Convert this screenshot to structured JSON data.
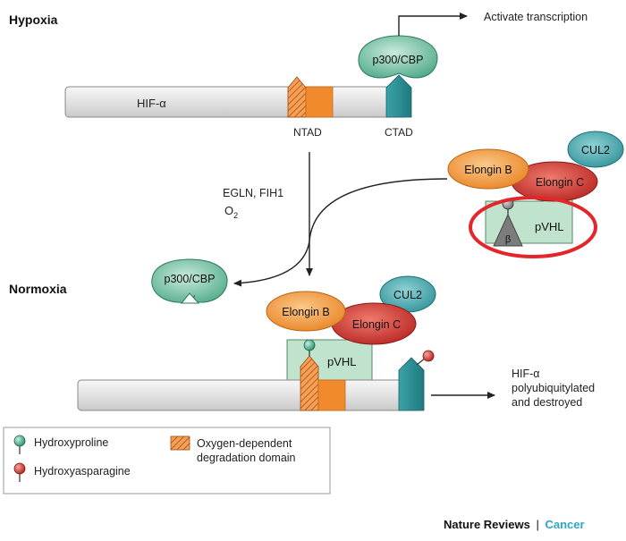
{
  "hypoxia": {
    "section_title": "Hypoxia",
    "protein_label": "HIF-α",
    "coactivator_label": "p300/CBP",
    "ntad_label": "NTAD",
    "ctad_label": "CTAD",
    "outcome_label": "Activate transcription"
  },
  "pathway": {
    "enzymes_label": "EGLN, FIH1",
    "oxygen_label": "O",
    "oxygen_subscript": "2",
    "released_coactivator_label": "p300/CBP"
  },
  "complex_free": {
    "elongin_b": "Elongin B",
    "elongin_c": "Elongin C",
    "cul2": "CUL2",
    "pvhl": "pVHL",
    "beta": "β"
  },
  "normoxia": {
    "section_title": "Normoxia",
    "elongin_b": "Elongin B",
    "elongin_c": "Elongin C",
    "cul2": "CUL2",
    "pvhl": "pVHL",
    "outcome_line1": "HIF-α",
    "outcome_line2": "polyubiquitylated",
    "outcome_line3": "and destroyed"
  },
  "legend": {
    "hydroxyproline": "Hydroxyproline",
    "hydroxyasparagine": "Hydroxyasparagine",
    "odd_line1": "Oxygen-dependent",
    "odd_line2": "degradation domain"
  },
  "credit": {
    "journal": "Nature Reviews",
    "separator": "|",
    "section": "Cancer"
  },
  "colors": {
    "bar_fill": "#e6e6e6",
    "green_protein": "#5fb69a",
    "ntad_orange": "#f08a2c",
    "ctad_teal": "#2d8f96",
    "elongin_b": "#f29a3a",
    "elongin_c": "#c8302d",
    "cul2": "#3aa0a8",
    "pvhl": "#bfe3cc",
    "highlight_ring": "#e3262b",
    "credit_accent": "#2aa7c9"
  }
}
